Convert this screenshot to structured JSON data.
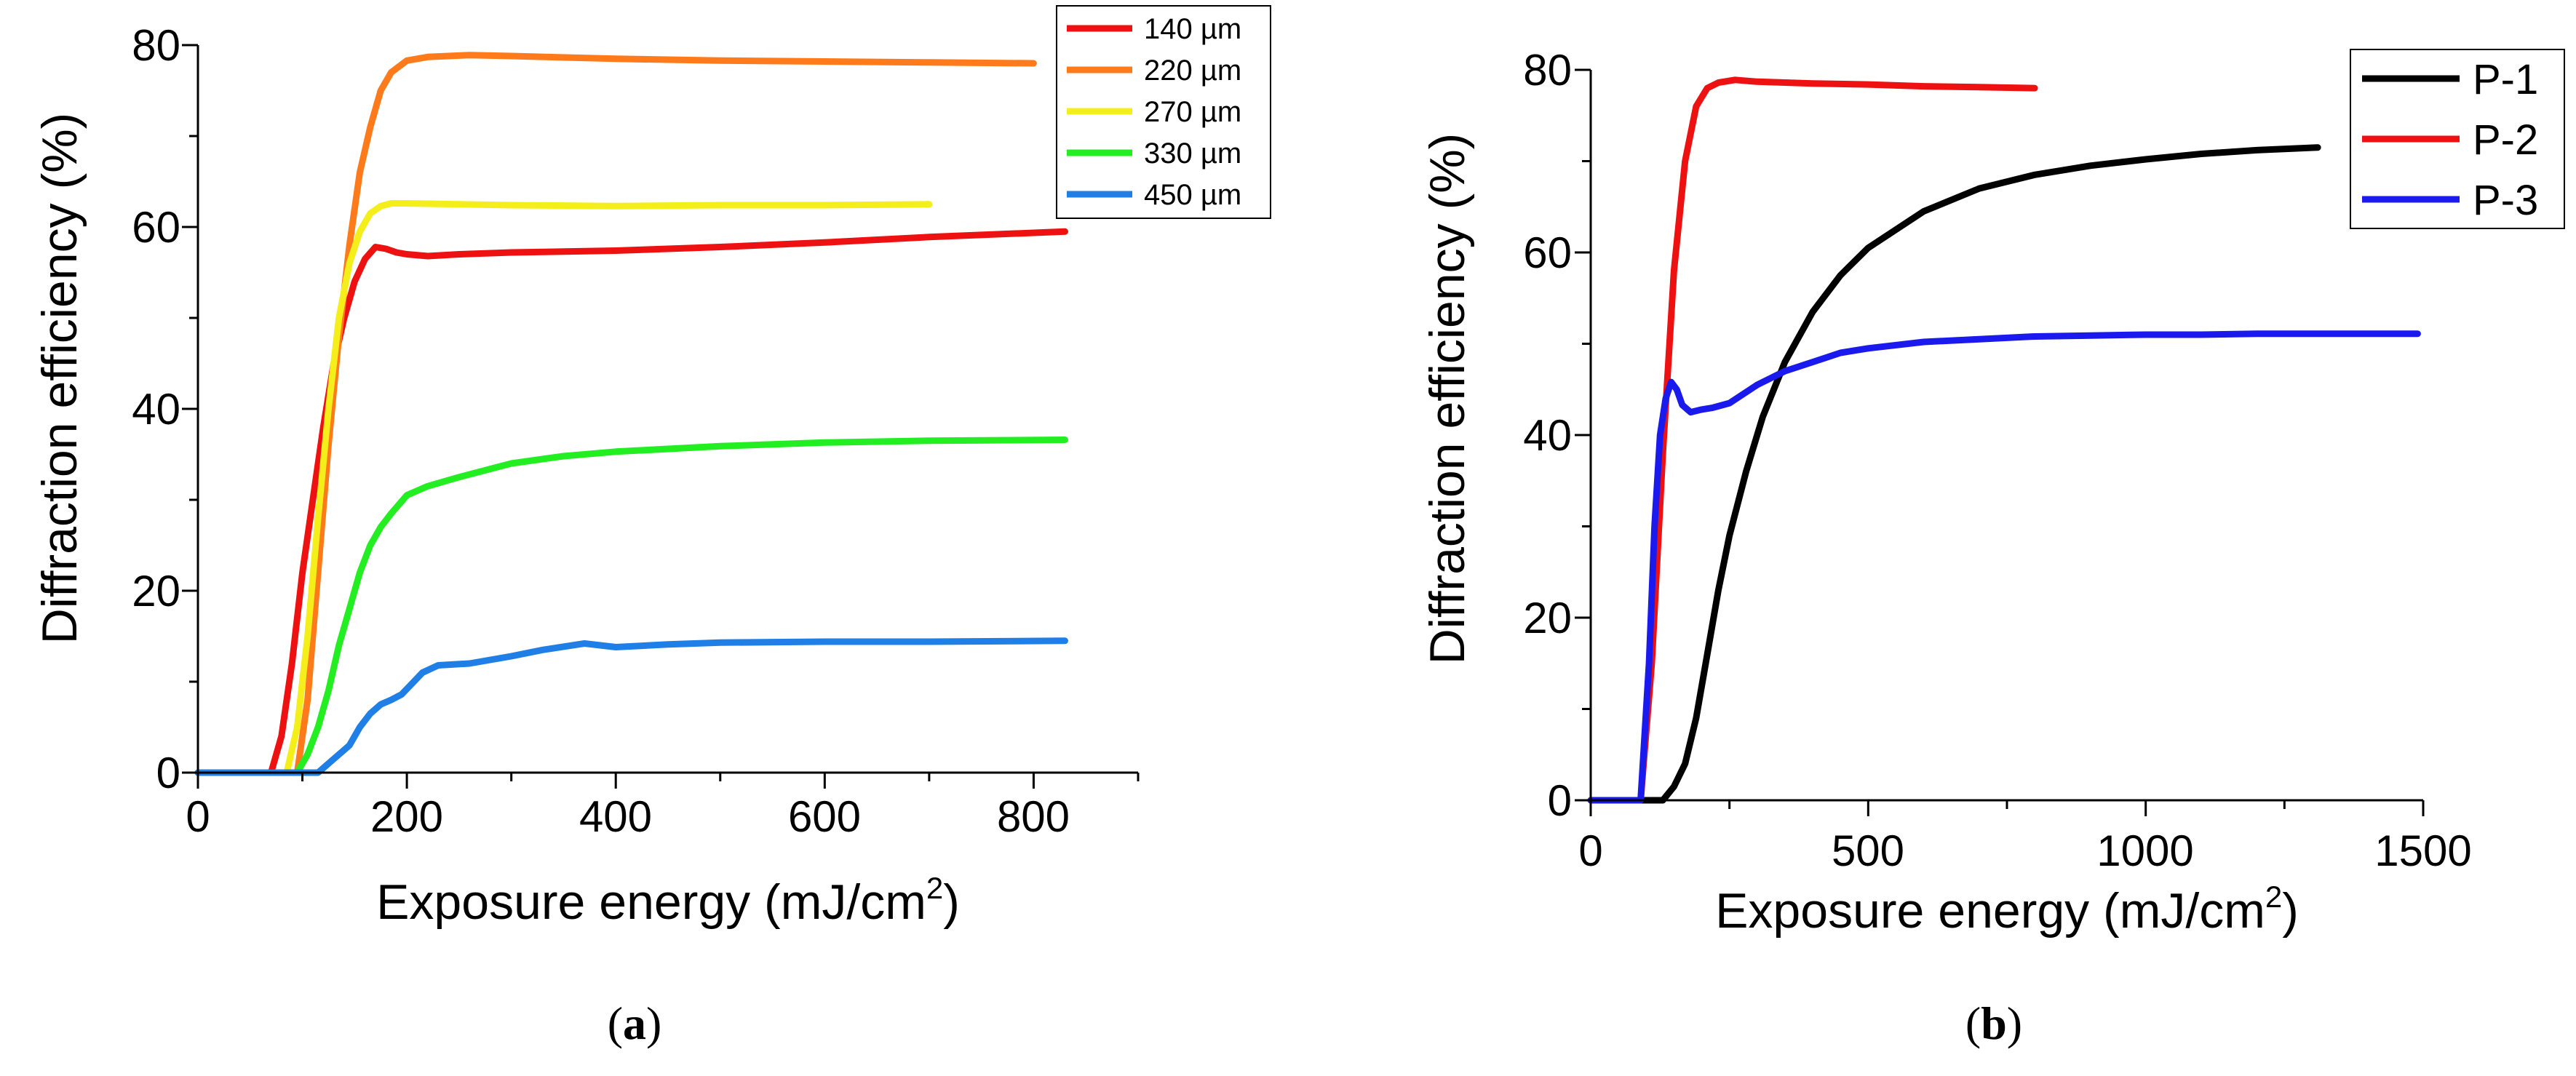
{
  "chart_data": [
    {
      "type": "line",
      "caption": {
        "open": "(",
        "letter": "a",
        "close": ")"
      },
      "xlabel": "Exposure energy (mJ/cm",
      "xlabel_sup": "2",
      "xlabel_close": ")",
      "ylabel": "Diffraction efficiency (%)",
      "xlim": [
        0,
        900
      ],
      "ylim": [
        0,
        80
      ],
      "xticks": [
        "0",
        "200",
        "400",
        "600",
        "800"
      ],
      "yticks": [
        "0",
        "20",
        "40",
        "60",
        "80"
      ],
      "series": [
        {
          "name": "140 µm",
          "color": "#ee1111",
          "x": [
            0,
            70,
            80,
            90,
            100,
            110,
            120,
            130,
            140,
            150,
            160,
            170,
            180,
            190,
            200,
            220,
            250,
            300,
            400,
            500,
            600,
            700,
            830
          ],
          "y": [
            0,
            0,
            4,
            12,
            22,
            30,
            38,
            45,
            50,
            54,
            56.5,
            57.8,
            57.6,
            57.2,
            57,
            56.8,
            57,
            57.2,
            57.4,
            57.8,
            58.3,
            58.9,
            59.5
          ]
        },
        {
          "name": "220 µm",
          "color": "#ff7a1a",
          "x": [
            0,
            95,
            105,
            115,
            125,
            135,
            145,
            155,
            165,
            175,
            185,
            200,
            220,
            260,
            300,
            400,
            500,
            600,
            700,
            800
          ],
          "y": [
            0,
            0,
            8,
            22,
            36,
            48,
            58,
            66,
            71,
            75,
            77,
            78.3,
            78.7,
            78.9,
            78.8,
            78.5,
            78.3,
            78.2,
            78.1,
            78
          ]
        },
        {
          "name": "270 µm",
          "color": "#f4ef1a",
          "x": [
            0,
            85,
            95,
            105,
            115,
            125,
            135,
            145,
            155,
            165,
            175,
            185,
            200,
            250,
            300,
            400,
            500,
            600,
            700
          ],
          "y": [
            0,
            0,
            5,
            15,
            28,
            40,
            50,
            56,
            59.5,
            61.5,
            62.3,
            62.6,
            62.6,
            62.5,
            62.4,
            62.3,
            62.4,
            62.4,
            62.5
          ]
        },
        {
          "name": "330 µm",
          "color": "#22ee22",
          "x": [
            0,
            95,
            105,
            115,
            125,
            135,
            145,
            155,
            165,
            175,
            185,
            200,
            220,
            250,
            300,
            350,
            400,
            500,
            600,
            700,
            830
          ],
          "y": [
            0,
            0,
            2,
            5,
            9,
            14,
            18,
            22,
            25,
            27,
            28.5,
            30.5,
            31.5,
            32.5,
            34,
            34.8,
            35.3,
            35.9,
            36.3,
            36.5,
            36.6
          ]
        },
        {
          "name": "450 µm",
          "color": "#1f7fe6",
          "x": [
            0,
            115,
            125,
            135,
            145,
            155,
            165,
            175,
            185,
            195,
            205,
            215,
            230,
            260,
            300,
            330,
            370,
            400,
            450,
            500,
            600,
            700,
            830
          ],
          "y": [
            0,
            0,
            1,
            2,
            3,
            5,
            6.5,
            7.5,
            8,
            8.6,
            9.8,
            11,
            11.8,
            12,
            12.8,
            13.5,
            14.2,
            13.8,
            14.1,
            14.3,
            14.4,
            14.4,
            14.5
          ]
        }
      ]
    },
    {
      "type": "line",
      "caption": {
        "open": "(",
        "letter": "b",
        "close": ")"
      },
      "xlabel": "Exposure energy (mJ/cm",
      "xlabel_sup": "2",
      "xlabel_close": ")",
      "ylabel": "Diffraction efficiency (%)",
      "xlim": [
        0,
        1500
      ],
      "ylim": [
        0,
        80
      ],
      "xticks": [
        "0",
        "500",
        "1000",
        "1500"
      ],
      "yticks": [
        "0",
        "20",
        "40",
        "60",
        "80"
      ],
      "series": [
        {
          "name": "P-1",
          "color": "#000000",
          "x": [
            0,
            130,
            150,
            170,
            190,
            210,
            230,
            250,
            280,
            310,
            350,
            400,
            450,
            500,
            600,
            700,
            800,
            900,
            1000,
            1100,
            1200,
            1310
          ],
          "y": [
            0,
            0,
            1.5,
            4,
            9,
            16,
            23,
            29,
            36,
            42,
            48,
            53.5,
            57.5,
            60.5,
            64.5,
            67,
            68.5,
            69.5,
            70.2,
            70.8,
            71.2,
            71.5
          ]
        },
        {
          "name": "P-2",
          "color": "#ee1111",
          "x": [
            0,
            90,
            110,
            130,
            150,
            170,
            190,
            210,
            230,
            260,
            300,
            400,
            500,
            600,
            700,
            800
          ],
          "y": [
            0,
            0,
            15,
            38,
            58,
            70,
            76,
            78,
            78.6,
            78.9,
            78.7,
            78.5,
            78.4,
            78.2,
            78.1,
            78
          ]
        },
        {
          "name": "P-3",
          "color": "#1a1aee",
          "x": [
            0,
            90,
            105,
            115,
            125,
            135,
            145,
            155,
            165,
            180,
            200,
            220,
            250,
            300,
            350,
            400,
            450,
            500,
            600,
            700,
            800,
            900,
            1000,
            1100,
            1200,
            1300,
            1400,
            1490
          ],
          "y": [
            0,
            0,
            15,
            30,
            40,
            44,
            45.8,
            45,
            43.3,
            42.5,
            42.8,
            43,
            43.5,
            45.5,
            47,
            48,
            49,
            49.5,
            50.2,
            50.5,
            50.8,
            50.9,
            51,
            51,
            51.1,
            51.1,
            51.1,
            51.1
          ]
        }
      ]
    }
  ]
}
